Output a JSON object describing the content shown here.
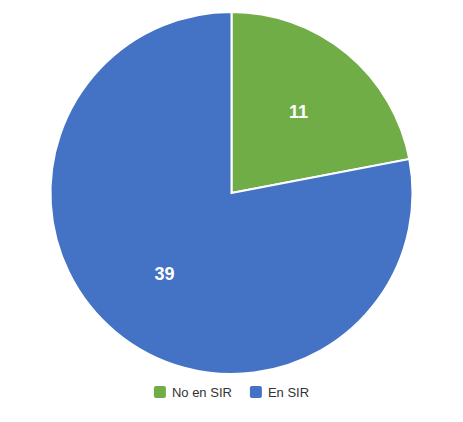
{
  "chart_data": {
    "type": "pie",
    "categories": [
      "No en SIR",
      "En SIR"
    ],
    "values": [
      11,
      39
    ],
    "colors": [
      "#70ad47",
      "#4472c4"
    ],
    "data_labels": true,
    "legend": "bottom"
  }
}
